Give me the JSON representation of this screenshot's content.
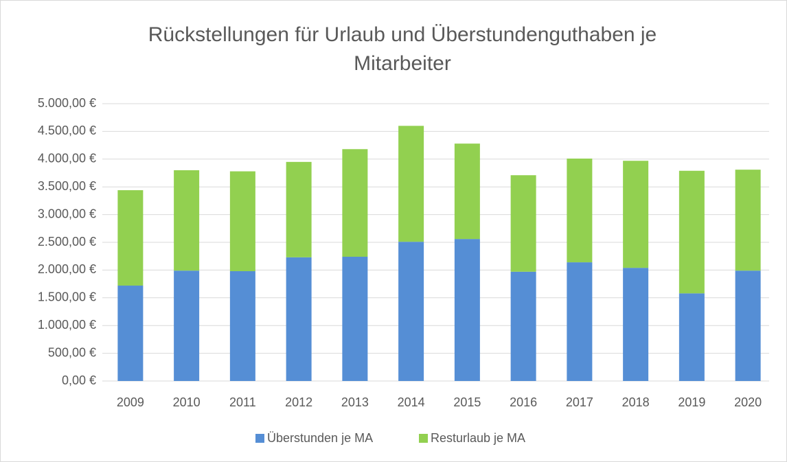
{
  "chart_data": {
    "type": "stacked_bar",
    "title": "Rückstellungen für Urlaub und Überstundenguthaben je Mitarbeiter",
    "categories": [
      "2009",
      "2010",
      "2011",
      "2012",
      "2013",
      "2014",
      "2015",
      "2016",
      "2017",
      "2018",
      "2019",
      "2020"
    ],
    "series": [
      {
        "name": "Überstunden je MA",
        "color": "#558ed5",
        "values": [
          1720,
          1990,
          1980,
          2230,
          2240,
          2510,
          2560,
          1970,
          2140,
          2040,
          1580,
          1990
        ]
      },
      {
        "name": "Resturlaub je MA",
        "color": "#92d050",
        "values": [
          1720,
          1810,
          1800,
          1720,
          1940,
          2090,
          1720,
          1740,
          1870,
          1930,
          2210,
          1820
        ]
      }
    ],
    "ylim": [
      0,
      5000
    ],
    "yticks": [
      {
        "value": 0,
        "label": "0,00 €"
      },
      {
        "value": 500,
        "label": "500,00 €"
      },
      {
        "value": 1000,
        "label": "1.000,00 €"
      },
      {
        "value": 1500,
        "label": "1.500,00 €"
      },
      {
        "value": 2000,
        "label": "2.000,00 €"
      },
      {
        "value": 2500,
        "label": "2.500,00 €"
      },
      {
        "value": 3000,
        "label": "3.000,00 €"
      },
      {
        "value": 3500,
        "label": "3.500,00 €"
      },
      {
        "value": 4000,
        "label": "4.000,00 €"
      },
      {
        "value": 4500,
        "label": "4.500,00 €"
      },
      {
        "value": 5000,
        "label": "5.000,00 €"
      }
    ],
    "grid": true,
    "legend": "bottom"
  }
}
